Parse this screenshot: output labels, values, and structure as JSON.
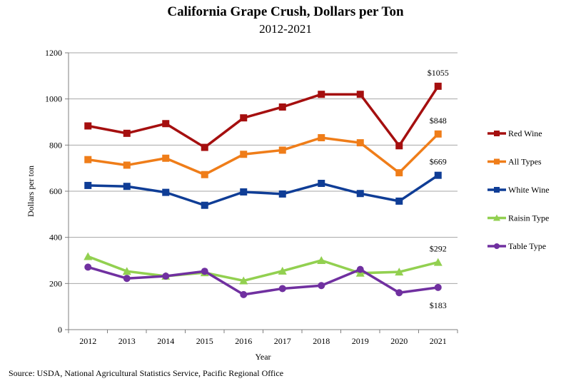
{
  "chart_data": {
    "type": "line",
    "title": "California Grape Crush, Dollars per Ton",
    "subtitle": "2012-2021",
    "xlabel": "Year",
    "ylabel": "Dollars  per ton",
    "ylim": [
      0,
      1200
    ],
    "yticks": [
      0,
      200,
      400,
      600,
      800,
      1000,
      1200
    ],
    "grid": true,
    "legend_position": "right",
    "categories": [
      "2012",
      "2013",
      "2014",
      "2015",
      "2016",
      "2017",
      "2018",
      "2019",
      "2020",
      "2021"
    ],
    "series": [
      {
        "name": "Red Wine",
        "color": "#A50F0F",
        "marker": "square",
        "values": [
          883,
          851,
          893,
          790,
          918,
          965,
          1020,
          1020,
          797,
          1055
        ]
      },
      {
        "name": "All Types",
        "color": "#EF7D19",
        "marker": "square",
        "values": [
          737,
          713,
          743,
          672,
          760,
          778,
          832,
          810,
          680,
          848
        ]
      },
      {
        "name": "White Wine",
        "color": "#0F3D96",
        "marker": "square",
        "values": [
          625,
          621,
          595,
          539,
          597,
          588,
          634,
          590,
          557,
          669
        ]
      },
      {
        "name": "Raisin Type",
        "color": "#92D050",
        "marker": "triangle",
        "values": [
          317,
          253,
          232,
          247,
          212,
          254,
          300,
          245,
          250,
          292
        ]
      },
      {
        "name": "Table Type",
        "color": "#7030A0",
        "marker": "circle",
        "values": [
          271,
          222,
          232,
          253,
          152,
          178,
          191,
          261,
          160,
          183
        ]
      }
    ],
    "annotations": [
      {
        "series": "Red Wine",
        "category": "2021",
        "text": "$1055",
        "placement": "above"
      },
      {
        "series": "All Types",
        "category": "2021",
        "text": "$848",
        "placement": "above"
      },
      {
        "series": "White Wine",
        "category": "2021",
        "text": "$669",
        "placement": "above"
      },
      {
        "series": "Raisin Type",
        "category": "2021",
        "text": "$292",
        "placement": "above"
      },
      {
        "series": "Table Type",
        "category": "2021",
        "text": "$183",
        "placement": "below"
      }
    ]
  },
  "source": "Source: USDA, National Agricultural Statistics Service, Pacific Regional Office"
}
